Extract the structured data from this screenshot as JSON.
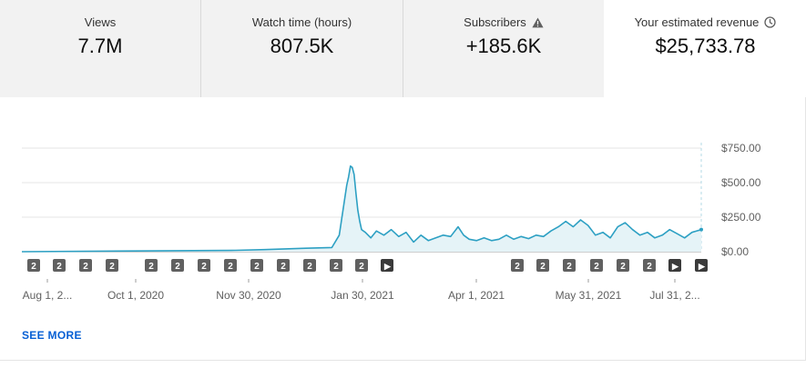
{
  "metrics": [
    {
      "label": "Views",
      "value": "7.7M",
      "icon": ""
    },
    {
      "label": "Watch time (hours)",
      "value": "807.5K",
      "icon": ""
    },
    {
      "label": "Subscribers",
      "value": "+185.6K",
      "icon": "warning-icon"
    },
    {
      "label": "Your estimated revenue",
      "value": "$25,733.78",
      "icon": "clock-icon",
      "selected": true
    }
  ],
  "colors": {
    "line": "#2da0c3",
    "fill": "#e5f3f7",
    "grid": "#e5e5e5",
    "link": "#065fd4",
    "marker": "#606060"
  },
  "markers": [
    {
      "glyph": "2",
      "type": "count"
    },
    {
      "glyph": "2",
      "type": "count"
    },
    {
      "glyph": "2",
      "type": "count"
    },
    {
      "glyph": "2",
      "type": "count"
    },
    {
      "glyph": "2",
      "type": "count"
    },
    {
      "glyph": "2",
      "type": "count"
    },
    {
      "glyph": "2",
      "type": "count"
    },
    {
      "glyph": "2",
      "type": "count"
    },
    {
      "glyph": "2",
      "type": "count"
    },
    {
      "glyph": "2",
      "type": "count"
    },
    {
      "glyph": "2",
      "type": "count"
    },
    {
      "glyph": "2",
      "type": "count"
    },
    {
      "glyph": "2",
      "type": "count"
    },
    {
      "glyph": "▶",
      "type": "play"
    },
    {
      "glyph": "2",
      "type": "count"
    },
    {
      "glyph": "2",
      "type": "count"
    },
    {
      "glyph": "2",
      "type": "count"
    },
    {
      "glyph": "2",
      "type": "count"
    },
    {
      "glyph": "2",
      "type": "count"
    },
    {
      "glyph": "2",
      "type": "count"
    },
    {
      "glyph": "▶",
      "type": "play"
    },
    {
      "glyph": "▶",
      "type": "play"
    }
  ],
  "see_more": "SEE MORE",
  "chart_data": {
    "type": "area",
    "ylim": [
      0,
      750
    ],
    "y_ticks": [
      0,
      250,
      500,
      750
    ],
    "y_tick_labels": [
      "$0.00",
      "$250.00",
      "$500.00",
      "$750.00"
    ],
    "x_range": [
      "2020-08-01",
      "2021-08-02"
    ],
    "x_tick_labels": [
      "Aug 1, 2...",
      "Oct 1, 2020",
      "Nov 30, 2020",
      "Jan 30, 2021",
      "Apr 1, 2021",
      "May 31, 2021",
      "Jul 31, 2..."
    ],
    "grid": true,
    "x": [
      "2020-08-01",
      "2020-11-24",
      "2020-12-10",
      "2021-01-01",
      "2021-01-15",
      "2021-01-19",
      "2021-01-21",
      "2021-01-23",
      "2021-01-24",
      "2021-01-25",
      "2021-01-26",
      "2021-01-27",
      "2021-01-28",
      "2021-01-29",
      "2021-01-30",
      "2021-01-31",
      "2021-02-02",
      "2021-02-05",
      "2021-02-08",
      "2021-02-12",
      "2021-02-16",
      "2021-02-20",
      "2021-02-24",
      "2021-02-28",
      "2021-03-04",
      "2021-03-08",
      "2021-03-12",
      "2021-03-16",
      "2021-03-20",
      "2021-03-24",
      "2021-03-27",
      "2021-03-30",
      "2021-04-03",
      "2021-04-07",
      "2021-04-11",
      "2021-04-15",
      "2021-04-19",
      "2021-04-23",
      "2021-04-27",
      "2021-05-01",
      "2021-05-05",
      "2021-05-09",
      "2021-05-13",
      "2021-05-17",
      "2021-05-21",
      "2021-05-25",
      "2021-05-29",
      "2021-06-02",
      "2021-06-06",
      "2021-06-10",
      "2021-06-14",
      "2021-06-18",
      "2021-06-22",
      "2021-06-26",
      "2021-06-30",
      "2021-07-04",
      "2021-07-08",
      "2021-07-12",
      "2021-07-16",
      "2021-07-20",
      "2021-07-24",
      "2021-07-28",
      "2021-08-02"
    ],
    "values": [
      0,
      10,
      15,
      25,
      30,
      120,
      300,
      480,
      540,
      620,
      610,
      560,
      420,
      300,
      220,
      160,
      140,
      100,
      150,
      120,
      160,
      110,
      140,
      70,
      120,
      80,
      100,
      120,
      110,
      180,
      120,
      90,
      80,
      100,
      80,
      90,
      120,
      90,
      110,
      95,
      120,
      110,
      150,
      180,
      220,
      180,
      230,
      190,
      120,
      140,
      100,
      180,
      210,
      160,
      120,
      140,
      100,
      120,
      160,
      130,
      100,
      140,
      160
    ]
  }
}
